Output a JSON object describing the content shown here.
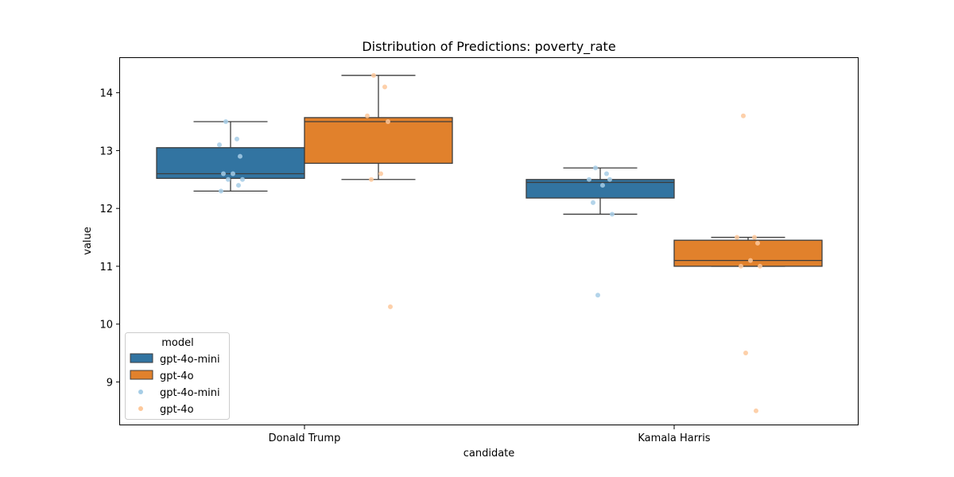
{
  "chart_data": {
    "type": "box",
    "title": "Distribution of Predictions: poverty_rate",
    "xlabel": "candidate",
    "ylabel": "value",
    "categories": [
      "Donald Trump",
      "Kamala Harris"
    ],
    "ylim": [
      8.25,
      14.6
    ],
    "yticks": [
      9,
      10,
      11,
      12,
      13,
      14
    ],
    "grid": false,
    "legend": {
      "title": "model",
      "placement": "lower-left",
      "entries": [
        {
          "label": "gpt-4o-mini",
          "kind": "box",
          "color": "#3274a1"
        },
        {
          "label": "gpt-4o",
          "kind": "box",
          "color": "#e1812c"
        },
        {
          "label": "gpt-4o-mini",
          "kind": "point",
          "color": "#a6cde6"
        },
        {
          "label": "gpt-4o",
          "kind": "point",
          "color": "#fdc89b"
        }
      ]
    },
    "series": [
      {
        "name": "gpt-4o-mini",
        "color": "#3274a1",
        "point_color": "#a6cde6",
        "boxes": [
          {
            "category": "Donald Trump",
            "whisker_low": 12.3,
            "q1": 12.52,
            "median": 12.6,
            "q3": 13.05,
            "whisker_high": 13.5,
            "points": [
              13.5,
              13.2,
              13.1,
              12.9,
              12.6,
              12.6,
              12.5,
              12.5,
              12.4,
              12.3
            ]
          },
          {
            "category": "Kamala Harris",
            "whisker_low": 11.9,
            "q1": 12.18,
            "median": 12.45,
            "q3": 12.5,
            "whisker_high": 12.7,
            "points": [
              12.7,
              12.6,
              12.5,
              12.5,
              12.4,
              12.1,
              11.9,
              10.5
            ]
          }
        ]
      },
      {
        "name": "gpt-4o",
        "color": "#e1812c",
        "point_color": "#fdc89b",
        "boxes": [
          {
            "category": "Donald Trump",
            "whisker_low": 12.5,
            "q1": 12.78,
            "median": 13.5,
            "q3": 13.57,
            "whisker_high": 14.3,
            "points": [
              14.3,
              14.1,
              13.6,
              13.5,
              12.6,
              12.5,
              10.3
            ]
          },
          {
            "category": "Kamala Harris",
            "whisker_low": 11.0,
            "q1": 11.0,
            "median": 11.1,
            "q3": 11.45,
            "whisker_high": 11.5,
            "points": [
              13.6,
              11.5,
              11.5,
              11.4,
              11.1,
              11.0,
              11.0,
              9.5,
              8.5
            ]
          }
        ]
      }
    ]
  }
}
